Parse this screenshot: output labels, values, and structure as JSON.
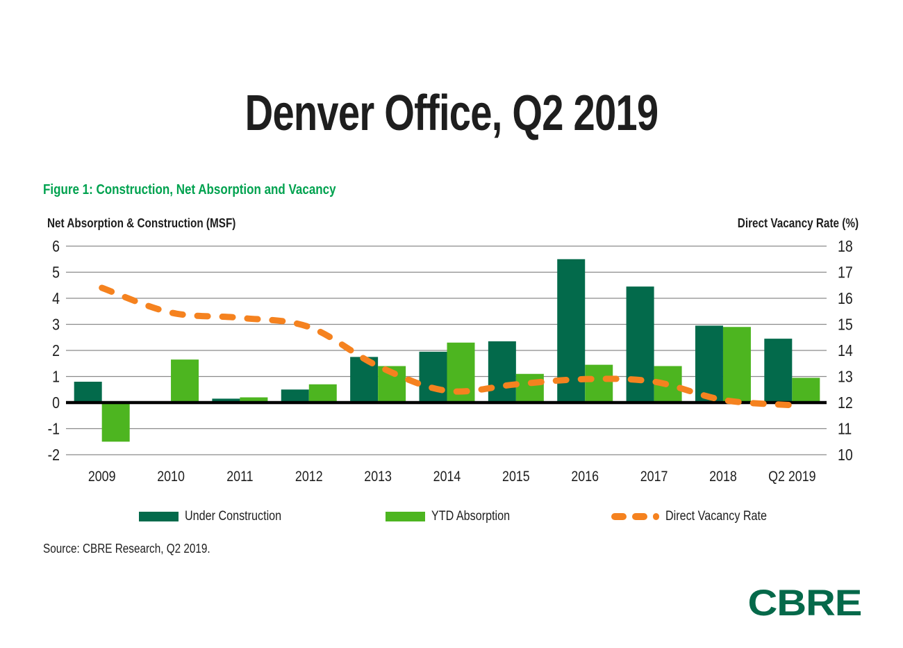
{
  "page": {
    "title": "Denver Office, Q2 2019",
    "source": "Source: CBRE Research, Q2 2019.",
    "logo_text": "CBRE"
  },
  "colors": {
    "dark_green": "#036A4B",
    "light_green": "#4DB520",
    "orange": "#F5821F",
    "caption_green": "#00A24F",
    "logo_green": "#05694A",
    "gridline_gray": "#8a8a8a",
    "text_black": "#1e1e1e"
  },
  "chart_data": {
    "type": "bar",
    "subtype": "grouped-bars-with-line-overlay",
    "title": "Figure 1: Construction, Net Absorption and Vacancy",
    "categories": [
      "2009",
      "2010",
      "2011",
      "2012",
      "2013",
      "2014",
      "2015",
      "2016",
      "2017",
      "2018",
      "Q2 2019"
    ],
    "series": [
      {
        "name": "Under Construction",
        "type": "bar",
        "axis": "left",
        "color": "#036A4B",
        "values": [
          0.8,
          0,
          0.15,
          0.5,
          1.75,
          1.95,
          2.35,
          5.5,
          4.45,
          2.95,
          2.45
        ]
      },
      {
        "name": "YTD Absorption",
        "type": "bar",
        "axis": "left",
        "color": "#4DB520",
        "values": [
          -1.5,
          1.65,
          0.2,
          0.7,
          1.4,
          2.3,
          1.1,
          1.45,
          1.4,
          2.9,
          0.95
        ]
      },
      {
        "name": "Direct Vacancy Rate",
        "type": "line",
        "axis": "right",
        "color": "#F5821F",
        "style": "dashed",
        "values": [
          16.4,
          15.45,
          15.25,
          14.9,
          13.4,
          12.45,
          12.7,
          12.9,
          12.8,
          12.1,
          11.9
        ]
      }
    ],
    "left_axis": {
      "label": "Net Absorption & Construction (MSF)",
      "min": -2,
      "max": 6,
      "ticks": [
        6,
        5,
        4,
        3,
        2,
        1,
        0,
        -1,
        -2
      ]
    },
    "right_axis": {
      "label": "Direct Vacancy Rate (%)",
      "min": 10,
      "max": 18,
      "ticks": [
        18,
        17,
        16,
        15,
        14,
        13,
        12,
        11,
        10
      ]
    },
    "grid": true,
    "zero_line": true,
    "legend_position": "bottom"
  }
}
